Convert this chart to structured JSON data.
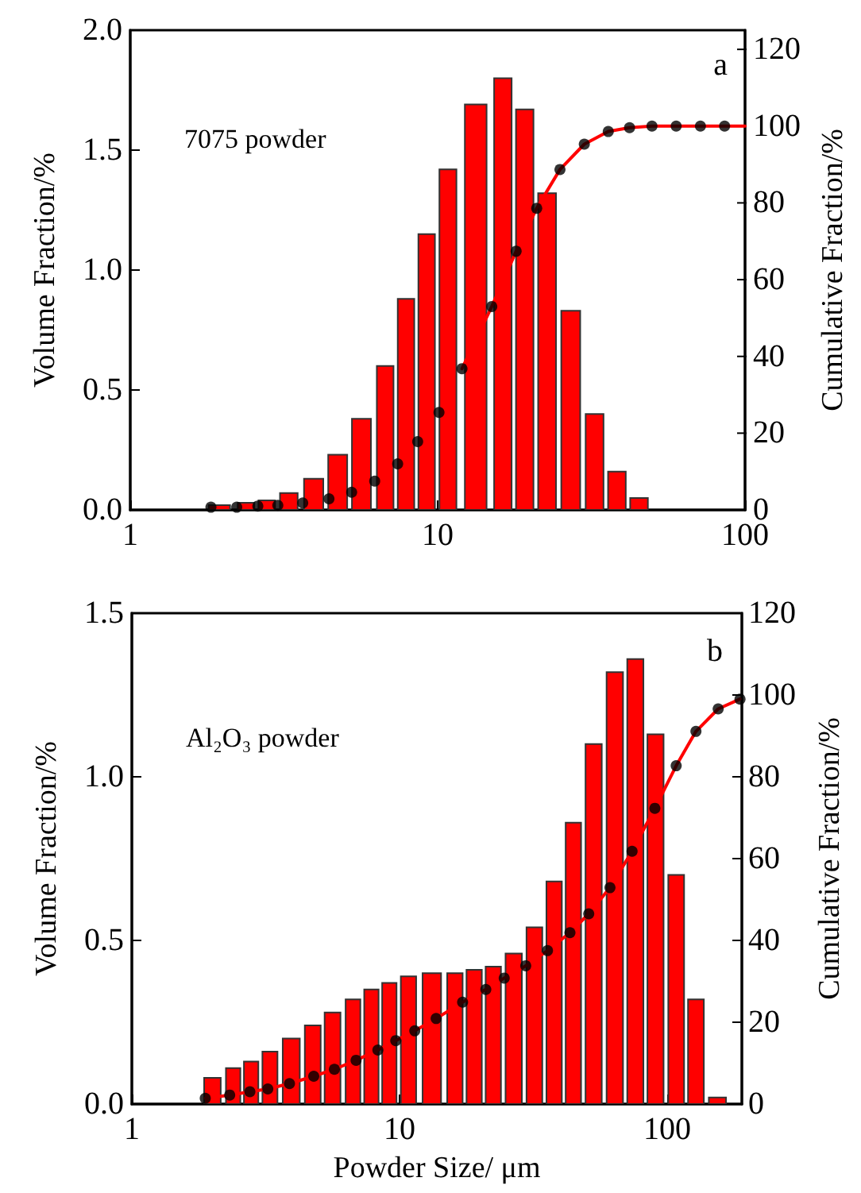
{
  "chart_data": [
    {
      "type": "bar",
      "ylabel": "Volume Fraction/%",
      "y2label": "Cumulative Fraction/%",
      "annotations": [
        "7075 powder",
        "a"
      ],
      "log": "x",
      "xlim": [
        1,
        100
      ],
      "xticks": [
        1,
        10,
        100
      ],
      "ylim": [
        0,
        2
      ],
      "yticks": [
        {
          "value": 0,
          "label": "0.0"
        },
        {
          "value": 0.5,
          "label": "0.5"
        },
        {
          "value": 1,
          "label": "1.0"
        },
        {
          "value": 1.5,
          "label": "1.5"
        },
        {
          "value": 2,
          "label": "2.0"
        }
      ],
      "y2lim": [
        0,
        125
      ],
      "y2ticks": [
        0,
        20,
        40,
        60,
        80,
        100,
        120
      ],
      "series": [
        {
          "color": "#ff0000",
          "x": [
            1.95,
            2.38,
            2.78,
            3.28,
            3.95,
            4.73,
            5.65,
            6.75,
            7.89,
            9.21,
            10.8,
            13.3,
            16.3,
            19.2,
            22.7,
            27.1,
            32.4,
            38.3,
            45.2
          ],
          "values": [
            0.02,
            0.03,
            0.04,
            0.07,
            0.13,
            0.23,
            0.38,
            0.6,
            0.88,
            1.15,
            1.42,
            1.69,
            1.8,
            1.67,
            1.32,
            0.83,
            0.4,
            0.16,
            0.05
          ]
        },
        {
          "type": "line",
          "color": "#ff0000",
          "axis": "y2",
          "marker": "none",
          "line_style": "solid",
          "x": [
            12.0,
            15.0,
            18.0,
            21.0,
            25.0,
            30.0,
            35.9,
            42.1,
            49.8,
            59.7,
            71.6,
            85.8,
            100
          ],
          "values": [
            36.8,
            53.0,
            67.4,
            78.6,
            88.7,
            95.3,
            98.6,
            99.6,
            100,
            100,
            100,
            100,
            100
          ]
        },
        {
          "type": "scatter",
          "color": "#000000",
          "axis": "y2",
          "marker": "circle",
          "x": [
            1.83,
            2.22,
            2.6,
            3.02,
            3.64,
            4.43,
            5.25,
            6.24,
            7.41,
            8.61,
            10.1,
            12.0,
            15.0,
            18.0,
            21.0,
            25.0,
            30.0,
            35.9,
            42.1,
            49.8,
            59.7,
            71.6,
            85.8
          ],
          "values": [
            0.7,
            0.7,
            1.0,
            1.2,
            1.8,
            2.9,
            4.6,
            7.5,
            12.0,
            17.8,
            25.4,
            36.8,
            53.0,
            67.4,
            78.6,
            88.7,
            95.3,
            98.6,
            99.6,
            100,
            100,
            100,
            100
          ]
        }
      ]
    },
    {
      "type": "bar",
      "xlabel": "Powder Size/ μm",
      "ylabel": "Volume Fraction/%",
      "y2label": "Cumulative Fraction/%",
      "annotations": [
        "Al₂O₃ powder",
        "b"
      ],
      "log": "x",
      "xlim": [
        1,
        190
      ],
      "xticks": [
        1,
        10,
        100
      ],
      "ylim": [
        0,
        1.5
      ],
      "yticks": [
        {
          "value": 0,
          "label": "0.0"
        },
        {
          "value": 0.5,
          "label": "0.5"
        },
        {
          "value": 1,
          "label": "1.0"
        },
        {
          "value": 1.5,
          "label": "1.5"
        }
      ],
      "y2lim": [
        0,
        120
      ],
      "y2ticks": [
        0,
        20,
        40,
        60,
        80,
        100,
        120
      ],
      "series": [
        {
          "color": "#ff0000",
          "x": [
            2.0,
            2.39,
            2.79,
            3.28,
            3.94,
            4.74,
            5.62,
            6.7,
            7.85,
            9.16,
            10.8,
            13.2,
            16.1,
            19.0,
            22.4,
            26.7,
            31.9,
            37.8,
            44.6,
            53.1,
            63.7,
            76.0,
            90.4,
            108,
            128,
            154
          ],
          "values": [
            0.08,
            0.11,
            0.13,
            0.16,
            0.2,
            0.24,
            0.28,
            0.32,
            0.35,
            0.37,
            0.39,
            0.4,
            0.4,
            0.41,
            0.42,
            0.46,
            0.54,
            0.68,
            0.86,
            1.1,
            1.32,
            1.36,
            1.13,
            0.7,
            0.32,
            0.02
          ]
        },
        {
          "type": "line",
          "color": "#ff0000",
          "axis": "y2",
          "marker": "none",
          "line_style": "solid",
          "x": [
            1.88,
            2.32,
            2.76,
            3.22,
            3.88,
            4.78,
            5.71,
            6.88,
            8.3,
            9.68,
            11.4,
            13.7,
            17.2,
            21.0,
            24.6,
            29.6,
            35.7,
            43.3,
            50.9,
            61.1,
            73.9,
            89.9,
            108,
            128,
            155,
            187
          ],
          "values": [
            1.4,
            2.2,
            3.0,
            3.7,
            5.0,
            6.8,
            8.5,
            10.7,
            13.2,
            15.5,
            17.9,
            20.9,
            24.9,
            28.0,
            30.8,
            33.8,
            37.5,
            41.9,
            46.5,
            52.9,
            61.8,
            72.3,
            82.7,
            91.1,
            96.6,
            99.0
          ]
        },
        {
          "type": "scatter",
          "color": "#000000",
          "axis": "y2",
          "marker": "circle",
          "x": [
            1.88,
            2.32,
            2.76,
            3.22,
            3.88,
            4.78,
            5.71,
            6.88,
            8.3,
            9.68,
            11.4,
            13.7,
            17.2,
            21.0,
            24.6,
            29.6,
            35.7,
            43.3,
            50.9,
            61.1,
            73.9,
            89.9,
            108,
            128,
            155,
            187
          ],
          "values": [
            1.4,
            2.2,
            3.0,
            3.7,
            5.0,
            6.8,
            8.5,
            10.7,
            13.2,
            15.5,
            17.9,
            20.9,
            24.9,
            28.0,
            30.8,
            33.8,
            37.5,
            41.9,
            46.5,
            52.9,
            61.8,
            72.3,
            82.7,
            91.1,
            96.6,
            99.0
          ]
        }
      ]
    }
  ]
}
